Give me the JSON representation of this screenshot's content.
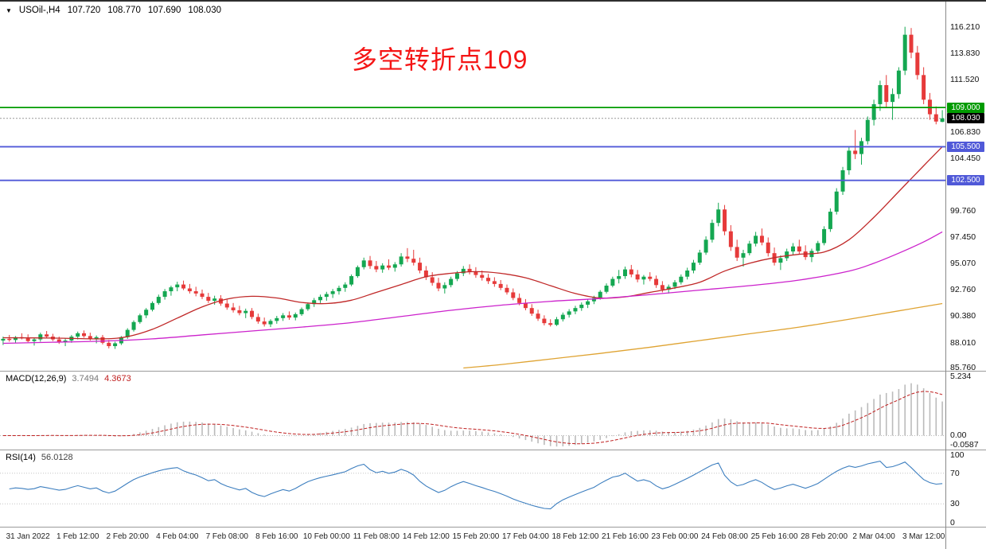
{
  "header": {
    "dropdown_icon": "▼",
    "symbol": "USOil-,H4",
    "open": "107.720",
    "high": "108.770",
    "low": "107.690",
    "close": "108.030"
  },
  "annotation": {
    "text": "多空转折点109",
    "color": "#f51515"
  },
  "indicators": {
    "macd": {
      "name": "MACD(12,26,9)",
      "main_value": "3.7494",
      "signal_value": "4.3673"
    },
    "rsi": {
      "name": "RSI(14)",
      "value": "56.0128"
    }
  },
  "chart_data": {
    "type": "candlestick",
    "symbol": "USOil-",
    "timeframe": "H4",
    "main": {
      "ylim": [
        85.5,
        118.6
      ],
      "grid": false,
      "ticks": [
        "116.210",
        "113.830",
        "111.520",
        "106.830",
        "104.450",
        "99.760",
        "97.450",
        "95.070",
        "92.760",
        "90.380",
        "88.010",
        "85.760"
      ]
    },
    "candles": [
      [
        88.2,
        88.55,
        87.8,
        88.35
      ],
      [
        88.35,
        88.7,
        88.1,
        88.25
      ],
      [
        88.25,
        88.6,
        87.95,
        88.5
      ],
      [
        88.5,
        88.85,
        88.3,
        88.4
      ],
      [
        88.4,
        88.75,
        88.05,
        88.15
      ],
      [
        88.15,
        88.45,
        87.75,
        88.3
      ],
      [
        88.3,
        88.9,
        88.1,
        88.75
      ],
      [
        88.75,
        89.05,
        88.4,
        88.55
      ],
      [
        88.55,
        88.8,
        88.15,
        88.3
      ],
      [
        88.3,
        88.55,
        87.9,
        88.05
      ],
      [
        88.05,
        88.4,
        87.7,
        88.2
      ],
      [
        88.2,
        88.7,
        88.0,
        88.55
      ],
      [
        88.55,
        89.0,
        88.3,
        88.85
      ],
      [
        88.85,
        89.1,
        88.45,
        88.6
      ],
      [
        88.6,
        88.9,
        88.2,
        88.35
      ],
      [
        88.35,
        88.65,
        87.95,
        88.5
      ],
      [
        88.5,
        88.7,
        87.85,
        88.0
      ],
      [
        88.0,
        88.25,
        87.5,
        87.7
      ],
      [
        87.7,
        88.1,
        87.45,
        87.95
      ],
      [
        87.95,
        88.6,
        87.8,
        88.5
      ],
      [
        88.5,
        89.3,
        88.35,
        89.15
      ],
      [
        89.15,
        90.0,
        89.0,
        89.85
      ],
      [
        89.85,
        90.6,
        89.7,
        90.45
      ],
      [
        90.45,
        91.1,
        90.2,
        90.95
      ],
      [
        90.95,
        91.7,
        90.8,
        91.55
      ],
      [
        91.55,
        92.3,
        91.4,
        92.1
      ],
      [
        92.1,
        92.8,
        91.85,
        92.6
      ],
      [
        92.6,
        93.1,
        92.2,
        92.95
      ],
      [
        92.95,
        93.45,
        92.6,
        93.2
      ],
      [
        93.2,
        93.55,
        92.7,
        92.85
      ],
      [
        92.85,
        93.25,
        92.4,
        92.6
      ],
      [
        92.6,
        93.0,
        92.15,
        92.4
      ],
      [
        92.4,
        92.75,
        91.9,
        92.1
      ],
      [
        92.1,
        92.45,
        91.55,
        91.75
      ],
      [
        91.75,
        92.2,
        91.4,
        91.95
      ],
      [
        91.95,
        92.25,
        91.3,
        91.5
      ],
      [
        91.5,
        91.85,
        90.95,
        91.15
      ],
      [
        91.15,
        91.55,
        90.7,
        90.9
      ],
      [
        90.9,
        91.3,
        90.45,
        90.65
      ],
      [
        90.65,
        91.05,
        90.2,
        90.85
      ],
      [
        90.85,
        91.1,
        90.1,
        90.3
      ],
      [
        90.3,
        90.6,
        89.7,
        89.9
      ],
      [
        89.9,
        90.25,
        89.45,
        89.65
      ],
      [
        89.65,
        90.1,
        89.4,
        89.95
      ],
      [
        89.95,
        90.4,
        89.7,
        90.2
      ],
      [
        90.2,
        90.65,
        89.95,
        90.45
      ],
      [
        90.45,
        90.8,
        90.05,
        90.25
      ],
      [
        90.25,
        90.7,
        90.0,
        90.55
      ],
      [
        90.55,
        91.15,
        90.4,
        91.0
      ],
      [
        91.0,
        91.6,
        90.85,
        91.45
      ],
      [
        91.45,
        92.0,
        91.2,
        91.8
      ],
      [
        91.8,
        92.3,
        91.55,
        92.1
      ],
      [
        92.1,
        92.55,
        91.75,
        92.35
      ],
      [
        92.35,
        92.8,
        92.0,
        92.6
      ],
      [
        92.6,
        93.1,
        92.3,
        92.9
      ],
      [
        92.9,
        93.4,
        92.55,
        93.2
      ],
      [
        93.2,
        94.1,
        93.05,
        93.95
      ],
      [
        93.95,
        94.9,
        93.8,
        94.75
      ],
      [
        94.75,
        95.6,
        94.55,
        95.35
      ],
      [
        95.35,
        95.75,
        94.6,
        94.85
      ],
      [
        94.85,
        95.3,
        94.3,
        94.55
      ],
      [
        94.55,
        95.1,
        94.25,
        94.9
      ],
      [
        94.9,
        95.45,
        94.5,
        94.7
      ],
      [
        94.7,
        95.2,
        94.35,
        95.0
      ],
      [
        95.0,
        96.0,
        94.8,
        95.7
      ],
      [
        95.7,
        96.45,
        95.2,
        95.5
      ],
      [
        95.5,
        96.3,
        94.9,
        95.15
      ],
      [
        95.15,
        95.6,
        94.2,
        94.45
      ],
      [
        94.45,
        94.85,
        93.6,
        93.85
      ],
      [
        93.85,
        94.3,
        93.1,
        93.35
      ],
      [
        93.35,
        93.8,
        92.6,
        92.85
      ],
      [
        92.85,
        93.4,
        92.4,
        93.15
      ],
      [
        93.15,
        93.9,
        92.95,
        93.7
      ],
      [
        93.7,
        94.4,
        93.5,
        94.2
      ],
      [
        94.2,
        94.85,
        93.95,
        94.6
      ],
      [
        94.6,
        95.0,
        94.1,
        94.35
      ],
      [
        94.35,
        94.75,
        93.8,
        94.05
      ],
      [
        94.05,
        94.45,
        93.55,
        93.8
      ],
      [
        93.8,
        94.15,
        93.25,
        93.5
      ],
      [
        93.5,
        93.85,
        93.0,
        93.25
      ],
      [
        93.25,
        93.6,
        92.7,
        92.9
      ],
      [
        92.9,
        93.2,
        92.3,
        92.5
      ],
      [
        92.5,
        92.85,
        91.8,
        92.0
      ],
      [
        92.0,
        92.4,
        91.35,
        91.55
      ],
      [
        91.55,
        91.9,
        90.9,
        91.1
      ],
      [
        91.1,
        91.45,
        90.4,
        90.6
      ],
      [
        90.6,
        90.95,
        89.95,
        90.15
      ],
      [
        90.15,
        90.45,
        89.55,
        89.75
      ],
      [
        89.75,
        90.1,
        89.45,
        89.6
      ],
      [
        89.6,
        90.3,
        89.5,
        90.1
      ],
      [
        90.1,
        90.7,
        89.9,
        90.5
      ],
      [
        90.5,
        91.0,
        90.25,
        90.8
      ],
      [
        90.8,
        91.3,
        90.55,
        91.1
      ],
      [
        91.1,
        91.6,
        90.85,
        91.4
      ],
      [
        91.4,
        91.9,
        91.1,
        91.7
      ],
      [
        91.7,
        92.2,
        91.45,
        92.0
      ],
      [
        92.0,
        92.7,
        91.85,
        92.55
      ],
      [
        92.55,
        93.3,
        92.4,
        93.1
      ],
      [
        93.1,
        93.9,
        92.95,
        93.7
      ],
      [
        93.7,
        94.5,
        93.3,
        93.95
      ],
      [
        93.95,
        94.8,
        93.7,
        94.55
      ],
      [
        94.55,
        94.95,
        93.85,
        94.1
      ],
      [
        94.1,
        94.5,
        93.4,
        93.65
      ],
      [
        93.65,
        94.05,
        93.2,
        93.9
      ],
      [
        93.9,
        94.3,
        93.5,
        93.7
      ],
      [
        93.7,
        94.0,
        92.9,
        93.15
      ],
      [
        93.15,
        93.5,
        92.5,
        92.75
      ],
      [
        92.75,
        93.2,
        92.4,
        93.0
      ],
      [
        93.0,
        93.6,
        92.8,
        93.4
      ],
      [
        93.4,
        94.1,
        93.2,
        93.9
      ],
      [
        93.9,
        94.7,
        93.65,
        94.45
      ],
      [
        94.45,
        95.4,
        94.2,
        95.15
      ],
      [
        95.15,
        96.3,
        94.95,
        96.05
      ],
      [
        96.05,
        97.5,
        95.85,
        97.2
      ],
      [
        97.2,
        99.0,
        96.95,
        98.7
      ],
      [
        98.7,
        100.5,
        98.4,
        99.9
      ],
      [
        99.9,
        100.3,
        97.6,
        97.95
      ],
      [
        97.95,
        98.5,
        96.2,
        96.55
      ],
      [
        96.55,
        97.2,
        95.3,
        95.6
      ],
      [
        95.6,
        96.3,
        94.8,
        96.0
      ],
      [
        96.0,
        97.1,
        95.8,
        96.85
      ],
      [
        96.85,
        97.9,
        96.6,
        97.55
      ],
      [
        97.55,
        98.2,
        96.7,
        96.95
      ],
      [
        96.95,
        97.4,
        95.7,
        96.0
      ],
      [
        96.0,
        96.5,
        94.9,
        95.15
      ],
      [
        95.15,
        95.8,
        94.5,
        95.55
      ],
      [
        95.55,
        96.4,
        95.3,
        96.15
      ],
      [
        96.15,
        96.9,
        95.85,
        96.6
      ],
      [
        96.6,
        97.2,
        95.9,
        96.15
      ],
      [
        96.15,
        96.7,
        95.4,
        95.65
      ],
      [
        95.65,
        96.4,
        95.2,
        96.2
      ],
      [
        96.2,
        97.1,
        95.95,
        96.9
      ],
      [
        96.9,
        98.4,
        96.7,
        98.15
      ],
      [
        98.15,
        100.0,
        97.9,
        99.7
      ],
      [
        99.7,
        101.8,
        99.45,
        101.5
      ],
      [
        101.5,
        103.7,
        101.2,
        103.4
      ],
      [
        103.4,
        105.5,
        103.0,
        105.15
      ],
      [
        105.15,
        107.0,
        104.4,
        104.85
      ],
      [
        104.85,
        106.3,
        103.9,
        106.0
      ],
      [
        106.0,
        108.2,
        105.7,
        107.9
      ],
      [
        107.9,
        109.7,
        107.4,
        109.3
      ],
      [
        109.3,
        111.4,
        108.7,
        111.0
      ],
      [
        111.0,
        111.9,
        109.0,
        109.5
      ],
      [
        109.5,
        110.7,
        107.9,
        110.2
      ],
      [
        110.2,
        112.6,
        109.8,
        112.3
      ],
      [
        112.3,
        116.21,
        111.9,
        115.5
      ],
      [
        115.5,
        116.1,
        113.4,
        113.9
      ],
      [
        113.9,
        114.5,
        111.5,
        111.9
      ],
      [
        111.9,
        112.6,
        109.3,
        109.7
      ],
      [
        109.7,
        110.3,
        107.9,
        108.4
      ],
      [
        108.4,
        109.1,
        107.5,
        107.75
      ],
      [
        107.72,
        108.77,
        107.69,
        108.03
      ]
    ],
    "overlays": [
      {
        "name": "ma-fast-red",
        "color": "#c02828",
        "points": [
          [
            0,
            88.45
          ],
          [
            8,
            88.42
          ],
          [
            16,
            88.35
          ],
          [
            20,
            88.55
          ],
          [
            24,
            89.2
          ],
          [
            28,
            90.2
          ],
          [
            32,
            91.2
          ],
          [
            36,
            91.9
          ],
          [
            40,
            92.15
          ],
          [
            44,
            92.0
          ],
          [
            48,
            91.6
          ],
          [
            52,
            91.5
          ],
          [
            56,
            91.8
          ],
          [
            60,
            92.5
          ],
          [
            64,
            93.2
          ],
          [
            68,
            93.9
          ],
          [
            72,
            94.2
          ],
          [
            76,
            94.35
          ],
          [
            80,
            94.2
          ],
          [
            84,
            93.8
          ],
          [
            88,
            93.1
          ],
          [
            92,
            92.4
          ],
          [
            96,
            92.0
          ],
          [
            100,
            92.1
          ],
          [
            104,
            92.5
          ],
          [
            108,
            92.9
          ],
          [
            112,
            93.4
          ],
          [
            116,
            94.4
          ],
          [
            120,
            95.1
          ],
          [
            124,
            95.6
          ],
          [
            128,
            95.9
          ],
          [
            132,
            96.1
          ],
          [
            136,
            97.2
          ],
          [
            140,
            99.2
          ],
          [
            144,
            101.5
          ],
          [
            148,
            103.8
          ],
          [
            151,
            105.5
          ]
        ]
      },
      {
        "name": "ma-mid-magenta",
        "color": "#cc22cc",
        "points": [
          [
            0,
            87.95
          ],
          [
            8,
            88.05
          ],
          [
            16,
            88.15
          ],
          [
            24,
            88.35
          ],
          [
            32,
            88.7
          ],
          [
            40,
            89.05
          ],
          [
            48,
            89.4
          ],
          [
            56,
            89.8
          ],
          [
            64,
            90.35
          ],
          [
            72,
            90.9
          ],
          [
            80,
            91.35
          ],
          [
            88,
            91.7
          ],
          [
            96,
            91.95
          ],
          [
            104,
            92.3
          ],
          [
            112,
            92.7
          ],
          [
            120,
            93.1
          ],
          [
            128,
            93.6
          ],
          [
            136,
            94.4
          ],
          [
            140,
            95.1
          ],
          [
            144,
            96.0
          ],
          [
            148,
            97.0
          ],
          [
            151,
            97.9
          ]
        ]
      },
      {
        "name": "ma-slow-orange",
        "color": "#dfa332",
        "points": [
          [
            74,
            85.75
          ],
          [
            80,
            86.05
          ],
          [
            88,
            86.55
          ],
          [
            96,
            87.05
          ],
          [
            104,
            87.6
          ],
          [
            112,
            88.2
          ],
          [
            120,
            88.8
          ],
          [
            128,
            89.4
          ],
          [
            136,
            90.1
          ],
          [
            144,
            90.85
          ],
          [
            151,
            91.5
          ]
        ]
      }
    ],
    "levels": [
      {
        "price": 109.0,
        "label": "109.000",
        "color": "#009b00"
      },
      {
        "price": 105.5,
        "label": "105.500",
        "color": "#5059d8"
      },
      {
        "price": 102.5,
        "label": "102.500",
        "color": "#5059d8"
      }
    ],
    "current_price": {
      "price": 108.03,
      "label": "108.030",
      "badge_bg": "#000000"
    },
    "x_labels": [
      {
        "i": 4,
        "t": "31 Jan 2022"
      },
      {
        "i": 12,
        "t": "1 Feb 12:00"
      },
      {
        "i": 20,
        "t": "2 Feb 20:00"
      },
      {
        "i": 28,
        "t": "4 Feb 04:00"
      },
      {
        "i": 36,
        "t": "7 Feb 08:00"
      },
      {
        "i": 44,
        "t": "8 Feb 16:00"
      },
      {
        "i": 52,
        "t": "10 Feb 00:00"
      },
      {
        "i": 60,
        "t": "11 Feb 08:00"
      },
      {
        "i": 68,
        "t": "14 Feb 12:00"
      },
      {
        "i": 76,
        "t": "15 Feb 20:00"
      },
      {
        "i": 84,
        "t": "17 Feb 04:00"
      },
      {
        "i": 92,
        "t": "18 Feb 12:00"
      },
      {
        "i": 100,
        "t": "21 Feb 16:00"
      },
      {
        "i": 108,
        "t": "23 Feb 00:00"
      },
      {
        "i": 116,
        "t": "24 Feb 08:00"
      },
      {
        "i": 124,
        "t": "25 Feb 16:00"
      },
      {
        "i": 132,
        "t": "28 Feb 20:00"
      },
      {
        "i": 140,
        "t": "2 Mar 04:00"
      },
      {
        "i": 148,
        "t": "3 Mar 12:00"
      }
    ],
    "macd": {
      "params": [
        12,
        26,
        9
      ],
      "ylim": [
        -1.2,
        5.5
      ],
      "ticks": [
        "5.234",
        "0.00",
        "-0.0587"
      ]
    },
    "rsi": {
      "period": 14,
      "ylim": [
        0,
        100
      ],
      "ticks": [
        "100",
        "70",
        "30",
        "0"
      ]
    },
    "colors": {
      "up": "#14a751",
      "down": "#e63a3a",
      "macd_hist": "#bbbbbb",
      "macd_signal": "#c02020",
      "rsi_line": "#3c7ebf",
      "current_line": "#999999"
    }
  }
}
